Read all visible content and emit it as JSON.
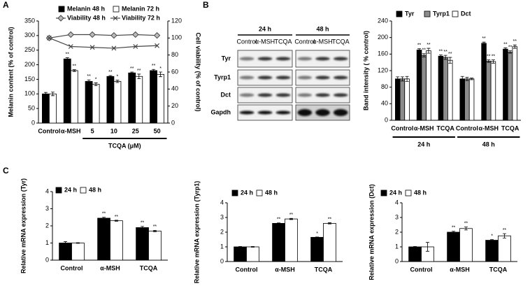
{
  "chart_data": [
    {
      "type": "bar_line",
      "panel": "A",
      "categories": [
        "Control",
        "α-MSH",
        "5",
        "10",
        "25",
        "50"
      ],
      "series": [
        {
          "name": "Melanin 48 h",
          "color": "#000000",
          "values": [
            100,
            220,
            143,
            160,
            172,
            180
          ],
          "errors": [
            5,
            4,
            5,
            3,
            3,
            4
          ],
          "sig": [
            null,
            "**",
            "**",
            "**",
            "**",
            "**"
          ]
        },
        {
          "name": "Melanin 72 h",
          "color": "#ffffff",
          "values": [
            100,
            180,
            133,
            143,
            160,
            167
          ],
          "errors": [
            6,
            3,
            5,
            4,
            8,
            8
          ],
          "sig": [
            null,
            "**",
            "*",
            "*",
            "**",
            "*"
          ]
        },
        {
          "name": "Viability 48 h",
          "color": "#444444",
          "axis": "y2",
          "marker": "diamond",
          "values": [
            100,
            104,
            104,
            103,
            104,
            103
          ]
        },
        {
          "name": "Viability 72 h",
          "color": "#444444",
          "axis": "y2",
          "marker": "x",
          "values": [
            100,
            90,
            89,
            88,
            90,
            91
          ]
        }
      ],
      "ylim": [
        0,
        350
      ],
      "yticks": [
        0,
        50,
        100,
        150,
        200,
        250,
        300,
        350
      ],
      "y_label": "Melanin content (% of control)",
      "y2lim": [
        0,
        120
      ],
      "y2ticks": [
        0,
        20,
        40,
        60,
        80,
        100,
        120
      ],
      "y2_label": "Cell viability (% of control)",
      "groups": [
        {
          "label": "TCQA (μM)",
          "categories": [
            "5",
            "50"
          ]
        }
      ]
    },
    {
      "type": "bar",
      "categories": [
        "Control",
        "α-MSH",
        "TCQA",
        "Control",
        "α-MSH",
        "TCQA"
      ],
      "series": [
        {
          "name": "Tyr",
          "color": "#000000",
          "values": [
            100,
            170,
            155,
            100,
            186,
            172
          ],
          "errors": [
            5,
            3,
            3,
            6,
            3,
            3
          ],
          "sig": [
            null,
            "**",
            "**",
            null,
            "**",
            "**"
          ]
        },
        {
          "name": "Tyrp1",
          "color": "#8c8c8c",
          "values": [
            100,
            157,
            152,
            100,
            143,
            165
          ],
          "errors": [
            5,
            4,
            5,
            4,
            3,
            3
          ],
          "sig": [
            null,
            "**",
            "**",
            null,
            "**",
            "**"
          ]
        },
        {
          "name": "Dct",
          "color": "#ffffff",
          "values": [
            100,
            168,
            145,
            100,
            142,
            178
          ],
          "errors": [
            6,
            6,
            7,
            2,
            4,
            4
          ],
          "sig": [
            null,
            "**",
            "**",
            null,
            "**",
            "**"
          ]
        }
      ],
      "ylim": [
        0,
        240
      ],
      "yticks": [
        0,
        40,
        80,
        120,
        160,
        200,
        240
      ],
      "y_label": "Band intensity ( % control)",
      "groups": [
        {
          "label": "24 h",
          "categories": [
            "Control",
            "TCQA"
          ]
        },
        {
          "label": "48 h",
          "categories": [
            "Control",
            "TCQA"
          ]
        }
      ]
    },
    {
      "type": "bar",
      "panel": "C",
      "categories": [
        "Control",
        "α-MSH",
        "TCQA"
      ],
      "series": [
        {
          "name": "24 h",
          "color": "#000000",
          "values": [
            1.0,
            2.45,
            1.9
          ],
          "errors": [
            0.08,
            0.05,
            0.07
          ],
          "sig": [
            null,
            "**",
            "**"
          ]
        },
        {
          "name": "48 h",
          "color": "#ffffff",
          "values": [
            1.0,
            2.3,
            1.7
          ],
          "errors": [
            0.02,
            0.03,
            0.04
          ],
          "sig": [
            null,
            "**",
            "**"
          ]
        }
      ],
      "ylim": [
        0,
        4
      ],
      "yticks": [
        0,
        1,
        2,
        3,
        4
      ],
      "y_label": "Relative mRNA  expression (Tyr)"
    },
    {
      "type": "bar",
      "categories": [
        "Control",
        "α-MSH",
        "TCQA"
      ],
      "series": [
        {
          "name": "24 h",
          "color": "#000000",
          "values": [
            1.0,
            2.6,
            1.65
          ],
          "errors": [
            0.02,
            0.03,
            0.02
          ],
          "sig": [
            null,
            "**",
            "*"
          ]
        },
        {
          "name": "48 h",
          "color": "#ffffff",
          "values": [
            1.0,
            2.9,
            2.6
          ],
          "errors": [
            0.02,
            0.04,
            0.04
          ],
          "sig": [
            null,
            "**",
            "**"
          ]
        }
      ],
      "ylim": [
        0,
        4
      ],
      "yticks": [
        0,
        1,
        2,
        3,
        4
      ],
      "y_label": "Relative mRNA  expression (Tyrp1)"
    },
    {
      "type": "bar",
      "categories": [
        "Control",
        "α-MSH",
        "TCQA"
      ],
      "series": [
        {
          "name": "24 h",
          "color": "#000000",
          "values": [
            1.0,
            2.0,
            1.45
          ],
          "errors": [
            0.02,
            0.06,
            0.04
          ],
          "sig": [
            null,
            "**",
            "*"
          ]
        },
        {
          "name": "48 h",
          "color": "#ffffff",
          "values": [
            1.0,
            2.25,
            1.75
          ],
          "errors": [
            0.3,
            0.1,
            0.15
          ],
          "sig": [
            null,
            "**",
            "**"
          ]
        }
      ],
      "ylim": [
        0,
        4
      ],
      "yticks": [
        0,
        1,
        2,
        3,
        4
      ],
      "y_label": "Relative mRNA expression (Dct)"
    }
  ],
  "blot": {
    "panel": "B",
    "times": [
      "24 h",
      "48 h"
    ],
    "lanes": [
      "Control",
      "α-MSH",
      "TCQA",
      "Control",
      "α-MSH",
      "TCQA"
    ],
    "rows": [
      "Tyr",
      "Tyrp1",
      "Dct",
      "Gapdh"
    ]
  }
}
